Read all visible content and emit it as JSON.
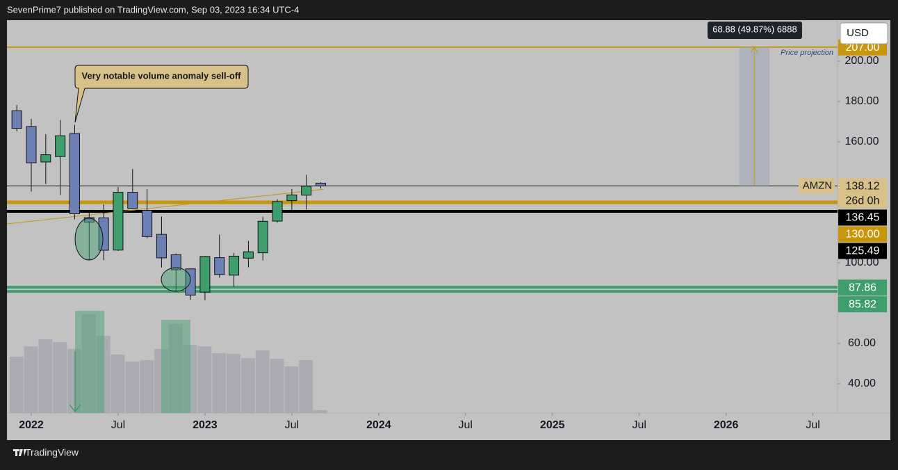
{
  "header": {
    "text": "SevenPrime7 published on TradingView.com, Sep 03, 2023 16:34 UTC-4"
  },
  "footer": {
    "brand": "TradingView"
  },
  "chart_data": {
    "type": "candlestick",
    "symbol": "AMZN",
    "currency": "USD",
    "x": [
      -1,
      0,
      1,
      2,
      3,
      4,
      5,
      6,
      7,
      8,
      9,
      10,
      11,
      12,
      13,
      14,
      15,
      16,
      17,
      18,
      19,
      20
    ],
    "open": [
      175.4,
      167.6,
      150.0,
      152.7,
      164.1,
      122.4,
      122.3,
      106.3,
      134.96,
      126.0,
      114.1,
      103.99,
      96.99,
      85.46,
      102.53,
      93.87,
      102.3,
      104.95,
      120.69,
      130.82,
      133.55,
      139.46
    ],
    "high": [
      178.3,
      171.4,
      163.8,
      170.8,
      168.4,
      126.2,
      128.99,
      137.65,
      146.57,
      136.49,
      123.0,
      104.58,
      97.23,
      103.49,
      114.0,
      104.92,
      110.86,
      122.92,
      131.49,
      136.65,
      143.63,
      139.96
    ],
    "low": [
      165.2,
      135.4,
      139.0,
      133.6,
      121.6,
      101.3,
      101.26,
      105.85,
      126.74,
      112.06,
      97.66,
      85.87,
      81.69,
      81.43,
      92.63,
      88.12,
      97.71,
      101.15,
      119.93,
      125.92,
      126.41,
      136.88
    ],
    "close": [
      166.7,
      149.6,
      153.6,
      163.0,
      124.3,
      120.2,
      106.21,
      134.95,
      127.0,
      113.0,
      102.44,
      96.54,
      84.0,
      103.13,
      94.23,
      103.29,
      105.45,
      120.58,
      130.36,
      133.68,
      138.01,
      138.12
    ],
    "up_color": "#3e9f6c",
    "down_color": "#6d80b5",
    "xlim": [
      -1.68,
      55.7
    ],
    "xticks": [
      {
        "value": 0,
        "label": "2022"
      },
      {
        "value": 6,
        "label": "Jul"
      },
      {
        "value": 12,
        "label": "2023"
      },
      {
        "value": 18,
        "label": "Jul"
      },
      {
        "value": 24,
        "label": "2024"
      },
      {
        "value": 30,
        "label": "Jul"
      },
      {
        "value": 36,
        "label": "2025"
      },
      {
        "value": 42,
        "label": "Jul"
      },
      {
        "value": 48,
        "label": "2026"
      },
      {
        "value": 54,
        "label": "Jul"
      }
    ],
    "ylim": [
      25.5,
      220
    ],
    "yticks": [
      {
        "value": 200,
        "label": "200.00"
      },
      {
        "value": 180,
        "label": "180.00"
      },
      {
        "value": 160,
        "label": "160.00"
      },
      {
        "value": 100,
        "label": "100.00"
      },
      {
        "value": 60,
        "label": "60.00"
      },
      {
        "value": 40,
        "label": "40.00"
      }
    ],
    "volume": {
      "values": [
        1620,
        1920,
        2120,
        2040,
        1840,
        2840,
        2220,
        1680,
        1480,
        1520,
        1840,
        2560,
        1960,
        1920,
        1720,
        1700,
        1580,
        1800,
        1560,
        1340,
        1520,
        80
      ],
      "color": "#a7a7b0",
      "lim": [
        0,
        3000
      ]
    },
    "levels": [
      {
        "value": 207,
        "label": "207.00",
        "color": "#c8960c",
        "width": 2
      },
      {
        "value": 130,
        "label": "130.00",
        "color": "#c8960c",
        "width": 5
      },
      {
        "value": 125.49,
        "label": "125.49",
        "color": "#000000",
        "width": 4
      },
      {
        "value": 87.86,
        "label": "87.86",
        "color": "#3e9f6c",
        "width": 4
      },
      {
        "value": 85.82,
        "label": "85.82",
        "color": "#3e9f6c",
        "width": 4
      }
    ],
    "last_price": {
      "value": 138.12,
      "label": "138.12",
      "countdown": "26d 0h",
      "color": "#d8c089"
    },
    "moving_average": {
      "x": [
        -1.68,
        20.2
      ],
      "values": [
        119.3,
        136.45
      ],
      "value_labels": [
        null,
        "136.45"
      ],
      "color": "#c8960c"
    },
    "annotations": {
      "callout": "Very notable volume anomaly sell-off",
      "projection": {
        "label": "68.88 (49.87%) 6888",
        "title": "Price projection",
        "x": [
          48.9,
          51.0
        ],
        "from": 138.12,
        "to": 207
      }
    }
  }
}
